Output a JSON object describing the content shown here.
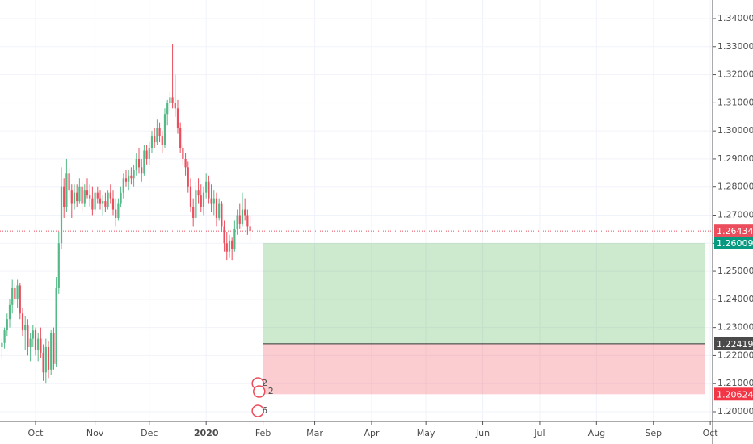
{
  "chart_data": {
    "type": "candlestick",
    "x": [
      -13,
      -12,
      -11,
      -10,
      -9,
      -8,
      -7,
      -6,
      -5,
      -4,
      -3,
      -2,
      -1,
      0,
      1,
      2,
      3,
      4,
      5,
      6,
      7,
      8,
      9,
      10,
      11,
      12,
      13,
      14,
      15,
      16,
      17,
      18,
      19,
      20,
      21,
      22,
      23,
      24,
      25,
      26,
      27,
      28,
      29,
      30,
      31,
      32,
      33,
      34,
      35,
      36,
      37,
      38,
      39,
      40,
      41,
      42,
      43,
      44,
      45,
      46,
      47,
      48,
      49,
      50,
      51,
      52,
      53,
      54,
      55,
      56,
      57,
      58,
      59,
      60,
      61,
      62,
      63,
      64,
      65,
      66,
      67,
      68,
      69,
      70,
      71,
      72,
      73,
      74,
      75,
      76,
      77,
      78,
      79,
      80,
      81,
      82,
      83
    ],
    "ohlc": [
      [
        1.223,
        1.226,
        1.219,
        1.2245
      ],
      [
        1.2245,
        1.23,
        1.2225,
        1.229
      ],
      [
        1.229,
        1.235,
        1.227,
        1.233
      ],
      [
        1.233,
        1.24,
        1.23,
        1.238
      ],
      [
        1.238,
        1.247,
        1.235,
        1.244
      ],
      [
        1.244,
        1.246,
        1.238,
        1.24
      ],
      [
        1.24,
        1.247,
        1.237,
        1.245
      ],
      [
        1.245,
        1.246,
        1.233,
        1.235
      ],
      [
        1.235,
        1.237,
        1.227,
        1.229
      ],
      [
        1.229,
        1.234,
        1.222,
        1.231
      ],
      [
        1.231,
        1.233,
        1.22,
        1.223
      ],
      [
        1.223,
        1.228,
        1.218,
        1.226
      ],
      [
        1.226,
        1.231,
        1.223,
        1.229
      ],
      [
        1.229,
        1.23,
        1.22,
        1.222
      ],
      [
        1.222,
        1.228,
        1.218,
        1.226
      ],
      [
        1.226,
        1.23,
        1.219,
        1.221
      ],
      [
        1.221,
        1.224,
        1.211,
        1.214
      ],
      [
        1.214,
        1.226,
        1.21,
        1.223
      ],
      [
        1.223,
        1.225,
        1.212,
        1.215
      ],
      [
        1.215,
        1.229,
        1.213,
        1.228
      ],
      [
        1.228,
        1.23,
        1.215,
        1.217
      ],
      [
        1.217,
        1.248,
        1.216,
        1.244
      ],
      [
        1.244,
        1.264,
        1.242,
        1.26
      ],
      [
        1.26,
        1.287,
        1.258,
        1.28
      ],
      [
        1.28,
        1.283,
        1.269,
        1.273
      ],
      [
        1.273,
        1.29,
        1.271,
        1.285
      ],
      [
        1.285,
        1.287,
        1.276,
        1.279
      ],
      [
        1.279,
        1.281,
        1.269,
        1.274
      ],
      [
        1.274,
        1.281,
        1.272,
        1.278
      ],
      [
        1.278,
        1.281,
        1.273,
        1.275
      ],
      [
        1.275,
        1.283,
        1.274,
        1.28
      ],
      [
        1.28,
        1.282,
        1.271,
        1.274
      ],
      [
        1.274,
        1.281,
        1.273,
        1.279
      ],
      [
        1.279,
        1.283,
        1.276,
        1.277
      ],
      [
        1.277,
        1.281,
        1.273,
        1.276
      ],
      [
        1.276,
        1.28,
        1.27,
        1.272
      ],
      [
        1.272,
        1.279,
        1.271,
        1.278
      ],
      [
        1.278,
        1.28,
        1.274,
        1.276
      ],
      [
        1.276,
        1.279,
        1.272,
        1.274
      ],
      [
        1.274,
        1.277,
        1.27,
        1.275
      ],
      [
        1.275,
        1.278,
        1.271,
        1.273
      ],
      [
        1.273,
        1.279,
        1.272,
        1.278
      ],
      [
        1.278,
        1.281,
        1.274,
        1.276
      ],
      [
        1.276,
        1.279,
        1.27,
        1.272
      ],
      [
        1.272,
        1.276,
        1.266,
        1.269
      ],
      [
        1.269,
        1.276,
        1.268,
        1.274
      ],
      [
        1.274,
        1.28,
        1.273,
        1.278
      ],
      [
        1.278,
        1.285,
        1.276,
        1.283
      ],
      [
        1.283,
        1.286,
        1.28,
        1.282
      ],
      [
        1.282,
        1.286,
        1.279,
        1.284
      ],
      [
        1.284,
        1.287,
        1.281,
        1.283
      ],
      [
        1.283,
        1.288,
        1.28,
        1.286
      ],
      [
        1.286,
        1.292,
        1.284,
        1.29
      ],
      [
        1.29,
        1.294,
        1.285,
        1.287
      ],
      [
        1.287,
        1.29,
        1.282,
        1.285
      ],
      [
        1.285,
        1.295,
        1.284,
        1.293
      ],
      [
        1.293,
        1.295,
        1.288,
        1.29
      ],
      [
        1.29,
        1.296,
        1.288,
        1.294
      ],
      [
        1.294,
        1.3,
        1.292,
        1.298
      ],
      [
        1.298,
        1.301,
        1.294,
        1.296
      ],
      [
        1.296,
        1.304,
        1.295,
        1.301
      ],
      [
        1.301,
        1.303,
        1.296,
        1.298
      ],
      [
        1.298,
        1.3,
        1.292,
        1.295
      ],
      [
        1.295,
        1.308,
        1.294,
        1.306
      ],
      [
        1.306,
        1.311,
        1.302,
        1.31
      ],
      [
        1.31,
        1.314,
        1.307,
        1.312
      ],
      [
        1.312,
        1.331,
        1.308,
        1.31
      ],
      [
        1.31,
        1.32,
        1.305,
        1.308
      ],
      [
        1.308,
        1.311,
        1.299,
        1.301
      ],
      [
        1.301,
        1.303,
        1.292,
        1.294
      ],
      [
        1.294,
        1.295,
        1.288,
        1.29
      ],
      [
        1.29,
        1.292,
        1.284,
        1.287
      ],
      [
        1.287,
        1.289,
        1.278,
        1.28
      ],
      [
        1.28,
        1.283,
        1.271,
        1.273
      ],
      [
        1.273,
        1.276,
        1.266,
        1.269
      ],
      [
        1.269,
        1.282,
        1.268,
        1.279
      ],
      [
        1.279,
        1.283,
        1.274,
        1.277
      ],
      [
        1.277,
        1.281,
        1.271,
        1.273
      ],
      [
        1.273,
        1.28,
        1.27,
        1.278
      ],
      [
        1.278,
        1.285,
        1.276,
        1.282
      ],
      [
        1.282,
        1.284,
        1.274,
        1.276
      ],
      [
        1.276,
        1.281,
        1.271,
        1.274
      ],
      [
        1.274,
        1.279,
        1.27,
        1.276
      ],
      [
        1.276,
        1.278,
        1.266,
        1.269
      ],
      [
        1.269,
        1.276,
        1.268,
        1.274
      ],
      [
        1.274,
        1.275,
        1.264,
        1.266
      ],
      [
        1.266,
        1.268,
        1.257,
        1.26
      ],
      [
        1.26,
        1.264,
        1.254,
        1.257
      ],
      [
        1.257,
        1.263,
        1.255,
        1.261
      ],
      [
        1.261,
        1.262,
        1.254,
        1.258
      ],
      [
        1.258,
        1.268,
        1.257,
        1.265
      ],
      [
        1.265,
        1.272,
        1.263,
        1.27
      ],
      [
        1.27,
        1.274,
        1.265,
        1.267
      ],
      [
        1.267,
        1.278,
        1.266,
        1.272
      ],
      [
        1.272,
        1.276,
        1.268,
        1.27
      ],
      [
        1.27,
        1.272,
        1.263,
        1.266
      ],
      [
        1.266,
        1.27,
        1.261,
        1.26434
      ]
    ],
    "up_color": "#53b987",
    "down_color": "#eb4d5c",
    "current_price": 1.26434,
    "position": {
      "x_start": 88,
      "x_end": 259,
      "target": 1.26009,
      "entry": 1.22419,
      "stop": 1.20624
    },
    "event_labels": [
      "2",
      "2",
      "6"
    ],
    "xlim": [
      -13.75,
      261.9
    ],
    "xticks": [
      {
        "value": 0,
        "label": "Oct"
      },
      {
        "value": 23,
        "label": "Nov"
      },
      {
        "value": 44,
        "label": "Dec"
      },
      {
        "value": 66,
        "label": "2020"
      },
      {
        "value": 88,
        "label": "Feb"
      },
      {
        "value": 108,
        "label": "Mar"
      },
      {
        "value": 130,
        "label": "Apr"
      },
      {
        "value": 151,
        "label": "May"
      },
      {
        "value": 173,
        "label": "Jun"
      },
      {
        "value": 195,
        "label": "Jul"
      },
      {
        "value": 217,
        "label": "Aug"
      },
      {
        "value": 239,
        "label": "Sep"
      },
      {
        "value": 261,
        "label": "Oct"
      }
    ],
    "ylim": [
      1.19655,
      1.34661
    ],
    "yticks": [
      {
        "value": 1.2,
        "label": "1.20000"
      },
      {
        "value": 1.21,
        "label": "1.21000"
      },
      {
        "value": 1.22,
        "label": "1.22000"
      },
      {
        "value": 1.23,
        "label": "1.23000"
      },
      {
        "value": 1.24,
        "label": "1.24000"
      },
      {
        "value": 1.25,
        "label": "1.25000"
      },
      {
        "value": 1.26,
        "label": "1.26000"
      },
      {
        "value": 1.27,
        "label": "1.27000"
      },
      {
        "value": 1.28,
        "label": "1.28000"
      },
      {
        "value": 1.29,
        "label": "1.29000"
      },
      {
        "value": 1.3,
        "label": "1.30000"
      },
      {
        "value": 1.31,
        "label": "1.31000"
      },
      {
        "value": 1.32,
        "label": "1.32000"
      },
      {
        "value": 1.33,
        "label": "1.33000"
      },
      {
        "value": 1.34,
        "label": "1.34000"
      }
    ],
    "grid": true
  }
}
